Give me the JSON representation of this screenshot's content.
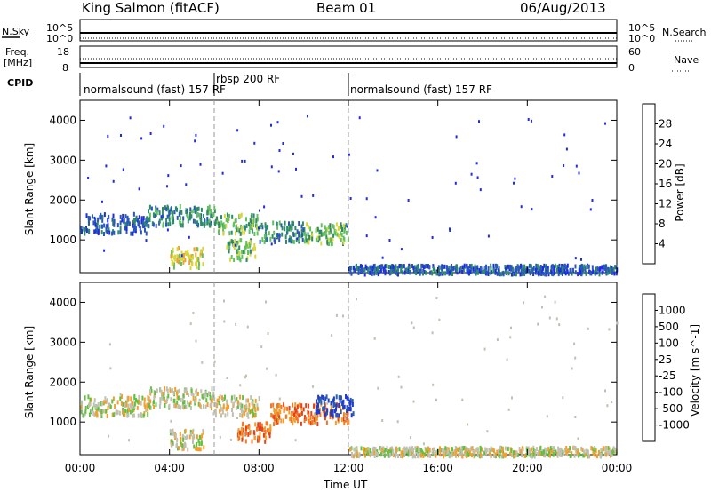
{
  "header": {
    "station": "King Salmon (fitACF)",
    "beam": "Beam 01",
    "date": "06/Aug/2013"
  },
  "panels": {
    "nsky_label": "N.Sky",
    "nsearch_label": "N.Search",
    "nsky_ticks": [
      "10^5",
      "10^0"
    ],
    "freq_label_1": "Freq.",
    "freq_label_2": "[MHz]",
    "freq_ticks": [
      "18",
      "8"
    ],
    "nave_label": "Nave",
    "nave_ticks": [
      "60",
      "0"
    ],
    "cpid_label": "CPID",
    "cpid_segments": [
      {
        "text": "normalsound (fast) 157 RF",
        "start_hour": 0
      },
      {
        "text": "rbsp 200 RF",
        "start_hour": 6
      },
      {
        "text": "normalsound (fast) 157 RF",
        "start_hour": 12
      }
    ]
  },
  "chart_data": [
    {
      "type": "heatmap",
      "name": "power",
      "ylabel": "Slant Range [km]",
      "xlabel": "Time UT",
      "xlim": [
        0,
        24
      ],
      "ylim": [
        180,
        4500
      ],
      "x_ticks": [
        "00:00",
        "04:00",
        "08:00",
        "12:00",
        "16:00",
        "20:00",
        "00:00"
      ],
      "y_ticks": [
        1000,
        2000,
        3000,
        4000
      ],
      "colorbar_label": "Power [dB]",
      "colorbar_ticks": [
        "28",
        "24",
        "20",
        "16",
        "12",
        "8",
        "4"
      ],
      "colors": [
        "#1e2de0",
        "#2b58b8",
        "#2f8a6a",
        "#63c060",
        "#d8d640",
        "#f0a030",
        "#f07020",
        "#e02020"
      ],
      "scatter_bands": [
        {
          "from_hour": 0.0,
          "to_hour": 3.0,
          "range_km": 1450,
          "level": 1
        },
        {
          "from_hour": 3.0,
          "to_hour": 6.0,
          "range_km": 1650,
          "level": 2
        },
        {
          "from_hour": 4.0,
          "to_hour": 5.5,
          "range_km": 600,
          "level": 4
        },
        {
          "from_hour": 6.0,
          "to_hour": 8.0,
          "range_km": 1450,
          "level": 3
        },
        {
          "from_hour": 6.5,
          "to_hour": 7.8,
          "range_km": 800,
          "level": 3
        },
        {
          "from_hour": 8.0,
          "to_hour": 10.0,
          "range_km": 1250,
          "level": 2
        },
        {
          "from_hour": 10.0,
          "to_hour": 12.0,
          "range_km": 1200,
          "level": 3
        },
        {
          "from_hour": 12.0,
          "to_hour": 24.0,
          "range_km": 300,
          "level": 1
        }
      ]
    },
    {
      "type": "heatmap",
      "name": "velocity",
      "ylabel": "Slant Range [km]",
      "xlabel": "Time UT",
      "xlim": [
        0,
        24
      ],
      "ylim": [
        180,
        4500
      ],
      "x_ticks": [
        "00:00",
        "04:00",
        "08:00",
        "12:00",
        "16:00",
        "20:00",
        "00:00"
      ],
      "y_ticks": [
        1000,
        2000,
        3000,
        4000
      ],
      "colorbar_label": "Velocity [m s^-1]",
      "colorbar_ticks": [
        "1000",
        "500",
        "100",
        "25",
        "-25",
        "-100",
        "-500",
        "-1000"
      ],
      "colors": [
        "#203cd0",
        "#2a60a8",
        "#3a9a50",
        "#60c040",
        "#c0c0b0",
        "#f0a030",
        "#f07828",
        "#e84018",
        "#e01818"
      ],
      "scatter_bands": [
        {
          "from_hour": 0.0,
          "to_hour": 3.0,
          "range_km": 1450,
          "level": 4
        },
        {
          "from_hour": 3.0,
          "to_hour": 6.0,
          "range_km": 1650,
          "level": 4
        },
        {
          "from_hour": 4.0,
          "to_hour": 5.5,
          "range_km": 600,
          "level": 4
        },
        {
          "from_hour": 6.0,
          "to_hour": 8.0,
          "range_km": 1450,
          "level": 4
        },
        {
          "from_hour": 7.0,
          "to_hour": 8.5,
          "range_km": 800,
          "level": 6
        },
        {
          "from_hour": 8.5,
          "to_hour": 12.0,
          "range_km": 1250,
          "level": 6
        },
        {
          "from_hour": 10.5,
          "to_hour": 12.2,
          "range_km": 1450,
          "level": 0
        },
        {
          "from_hour": 12.0,
          "to_hour": 24.0,
          "range_km": 300,
          "level": 4
        }
      ]
    }
  ]
}
